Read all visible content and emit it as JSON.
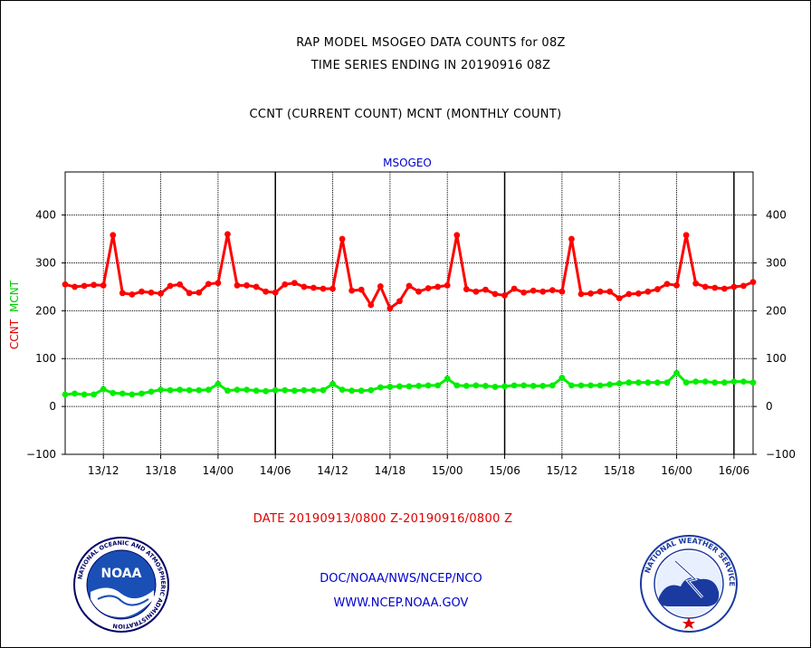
{
  "header": {
    "title_line1": "RAP MODEL MSOGEO DATA COUNTS for 08Z",
    "title_line2": "TIME SERIES ENDING IN 20190916 08Z",
    "subtitle": "CCNT (CURRENT COUNT) MCNT (MONTHLY COUNT)"
  },
  "footer": {
    "date_range": "DATE 20190913/0800 Z-20190916/0800 Z",
    "credit_line1": "DOC/NOAA/NWS/NCEP/NCO",
    "credit_line2": "WWW.NCEP.NOAA.GOV"
  },
  "chart_data": {
    "type": "line",
    "title": "MSOGEO",
    "ylabel_series1": "CCNT",
    "ylabel_series2": "MCNT",
    "ylim": [
      -100,
      400
    ],
    "yticks": [
      -100,
      0,
      100,
      200,
      300,
      400
    ],
    "xlim_hours": [
      0,
      72
    ],
    "xticks": [
      "13/12",
      "13/18",
      "14/00",
      "14/06",
      "14/12",
      "14/18",
      "15/00",
      "15/06",
      "15/12",
      "15/18",
      "16/00",
      "16/06"
    ],
    "xtick_hours": [
      4,
      10,
      16,
      22,
      28,
      34,
      40,
      46,
      52,
      58,
      64,
      70
    ],
    "day_boundary_hours": [
      22,
      46,
      70
    ],
    "grid": true,
    "colors": {
      "ccnt": "#ff0000",
      "mcnt": "#00ee00",
      "title": "#0000cc",
      "date": "#e00000"
    },
    "series": [
      {
        "name": "CCNT",
        "values": [
          255,
          250,
          252,
          254,
          253,
          358,
          237,
          234,
          240,
          238,
          236,
          252,
          255,
          237,
          238,
          256,
          258,
          360,
          253,
          253,
          250,
          240,
          238,
          255,
          258,
          250,
          248,
          246,
          246,
          350,
          242,
          244,
          212,
          251,
          205,
          220,
          252,
          240,
          247,
          250,
          253,
          358,
          245,
          240,
          244,
          235,
          232,
          246,
          238,
          242,
          240,
          243,
          240,
          350,
          235,
          236,
          240,
          240,
          226,
          235,
          236,
          240,
          245,
          256,
          253,
          358,
          257,
          250,
          248,
          246,
          250,
          252,
          260
        ]
      },
      {
        "name": "MCNT",
        "values": [
          25,
          27,
          25,
          25,
          36,
          28,
          27,
          25,
          27,
          31,
          35,
          34,
          35,
          34,
          34,
          35,
          47,
          33,
          35,
          35,
          33,
          32,
          34,
          34,
          33,
          34,
          34,
          34,
          47,
          35,
          33,
          33,
          34,
          40,
          41,
          42,
          42,
          43,
          44,
          44,
          58,
          44,
          43,
          44,
          43,
          41,
          42,
          44,
          44,
          43,
          43,
          44,
          60,
          44,
          44,
          44,
          44,
          46,
          48,
          50,
          50,
          50,
          50,
          50,
          70,
          50,
          52,
          52,
          50,
          50,
          52,
          52,
          50
        ]
      }
    ]
  },
  "logos": {
    "noaa_text": "NOAA",
    "noaa_ring": "NATIONAL OCEANIC AND ATMOSPHERIC ADMINISTRATION",
    "noaa_ring_bottom": "U.S. DEPARTMENT OF COMMERCE",
    "nws_ring": "NATIONAL WEATHER SERVICE"
  }
}
